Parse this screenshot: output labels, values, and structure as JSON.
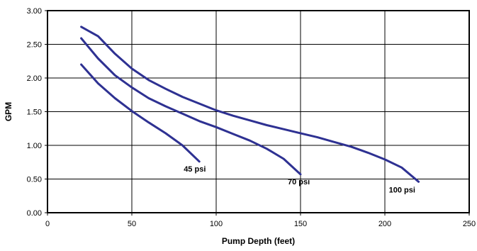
{
  "chart_data": {
    "type": "line",
    "title": "",
    "xlabel": "Pump Depth (feet)",
    "ylabel": "GPM",
    "xlim": [
      0,
      250
    ],
    "ylim": [
      0,
      3
    ],
    "x_ticks": [
      0,
      50,
      100,
      150,
      200,
      250
    ],
    "x_tick_labels": [
      "0",
      "50",
      "100",
      "150",
      "200",
      "250"
    ],
    "y_ticks": [
      0,
      0.5,
      1,
      1.5,
      2,
      2.5,
      3
    ],
    "y_tick_labels": [
      "0.00",
      "0.50",
      "1.00",
      "1.50",
      "2.00",
      "2.50",
      "3.00"
    ],
    "grid": true,
    "line_color": "#2e3192",
    "series": [
      {
        "name": "45 psi",
        "x": [
          20,
          30,
          40,
          50,
          60,
          70,
          80,
          90
        ],
        "y": [
          2.2,
          1.92,
          1.7,
          1.51,
          1.34,
          1.18,
          1.0,
          0.76
        ]
      },
      {
        "name": "70 psi",
        "x": [
          20,
          30,
          40,
          50,
          60,
          70,
          80,
          90,
          100,
          110,
          120,
          130,
          140,
          150
        ],
        "y": [
          2.59,
          2.29,
          2.04,
          1.86,
          1.7,
          1.58,
          1.47,
          1.36,
          1.27,
          1.17,
          1.07,
          0.95,
          0.8,
          0.57
        ]
      },
      {
        "name": "100 psi",
        "x": [
          20,
          30,
          40,
          50,
          60,
          70,
          80,
          90,
          100,
          110,
          120,
          130,
          140,
          150,
          160,
          170,
          180,
          190,
          200,
          210,
          220
        ],
        "y": [
          2.76,
          2.62,
          2.36,
          2.14,
          1.97,
          1.84,
          1.72,
          1.62,
          1.52,
          1.44,
          1.37,
          1.3,
          1.24,
          1.18,
          1.12,
          1.05,
          0.98,
          0.89,
          0.79,
          0.67,
          0.46
        ]
      }
    ]
  }
}
